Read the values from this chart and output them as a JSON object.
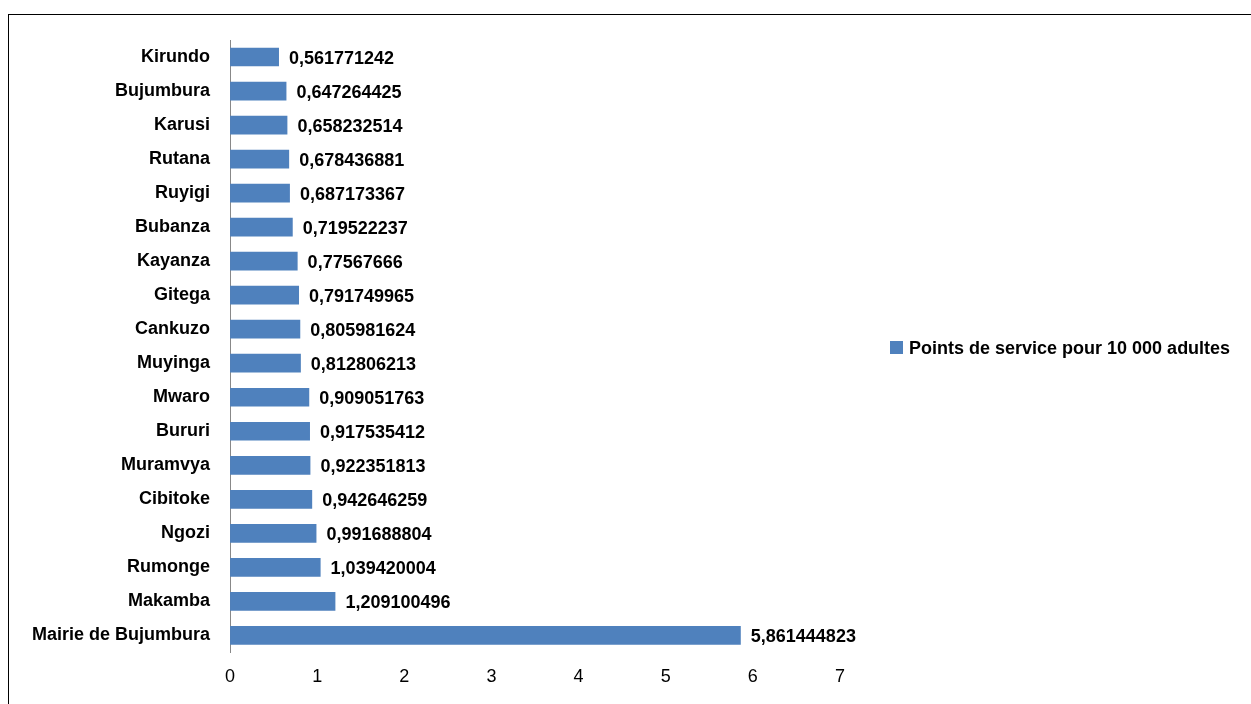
{
  "chart_data": {
    "type": "bar",
    "orientation": "horizontal",
    "categories": [
      "Kirundo",
      "Bujumbura",
      "Karusi",
      "Rutana",
      "Ruyigi",
      "Bubanza",
      "Kayanza",
      "Gitega",
      "Cankuzo",
      "Muyinga",
      "Mwaro",
      "Bururi",
      "Muramvya",
      "Cibitoke",
      "Ngozi",
      "Rumonge",
      "Makamba",
      "Mairie de Bujumbura"
    ],
    "series": [
      {
        "name": "Points de service pour 10 000 adultes",
        "color": "#4f81bd",
        "values": [
          0.561771242,
          0.647264425,
          0.658232514,
          0.678436881,
          0.687173367,
          0.719522237,
          0.77567666,
          0.791749965,
          0.805981624,
          0.812806213,
          0.909051763,
          0.917535412,
          0.922351813,
          0.942646259,
          0.991688804,
          1.039420004,
          1.209100496,
          5.861444823
        ],
        "value_labels": [
          "0,561771242",
          "0,647264425",
          "0,658232514",
          "0,678436881",
          "0,687173367",
          "0,719522237",
          "0,77567666",
          "0,791749965",
          "0,805981624",
          "0,812806213",
          "0,909051763",
          "0,917535412",
          "0,922351813",
          "0,942646259",
          "0,991688804",
          "1,039420004",
          "1,209100496",
          "5,861444823"
        ]
      }
    ],
    "xlim": [
      0,
      7
    ],
    "xticks": [
      0,
      1,
      2,
      3,
      4,
      5,
      6,
      7
    ],
    "grid": false,
    "legend": "right"
  }
}
